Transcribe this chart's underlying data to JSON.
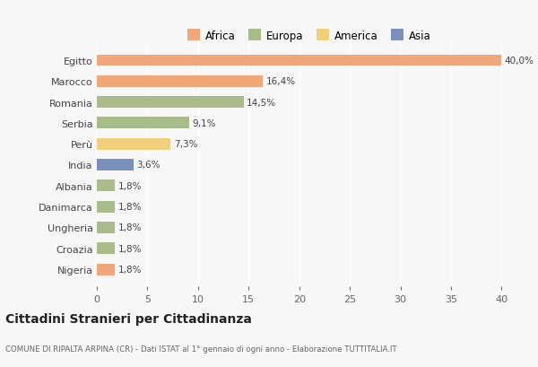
{
  "countries": [
    "Egitto",
    "Marocco",
    "Romania",
    "Serbia",
    "Perù",
    "India",
    "Albania",
    "Danimarca",
    "Ungheria",
    "Croazia",
    "Nigeria"
  ],
  "values": [
    40.0,
    16.4,
    14.5,
    9.1,
    7.3,
    3.6,
    1.8,
    1.8,
    1.8,
    1.8,
    1.8
  ],
  "labels": [
    "40,0%",
    "16,4%",
    "14,5%",
    "9,1%",
    "7,3%",
    "3,6%",
    "1,8%",
    "1,8%",
    "1,8%",
    "1,8%",
    "1,8%"
  ],
  "colors": [
    "#f0a87a",
    "#f0a87a",
    "#a8bc8a",
    "#a8bc8a",
    "#f0d07a",
    "#7a8fbc",
    "#a8bc8a",
    "#a8bc8a",
    "#a8bc8a",
    "#a8bc8a",
    "#f0a87a"
  ],
  "legend_labels": [
    "Africa",
    "Europa",
    "America",
    "Asia"
  ],
  "legend_colors": [
    "#f0a87a",
    "#a8bc8a",
    "#f0d07a",
    "#7a8fbc"
  ],
  "title": "Cittadini Stranieri per Cittadinanza",
  "subtitle": "COMUNE DI RIPALTA ARPINA (CR) - Dati ISTAT al 1° gennaio di ogni anno - Elaborazione TUTTITALIA.IT",
  "xlim": [
    0,
    42
  ],
  "xticks": [
    0,
    5,
    10,
    15,
    20,
    25,
    30,
    35,
    40
  ],
  "bg_color": "#f7f7f7",
  "bar_height": 0.55
}
